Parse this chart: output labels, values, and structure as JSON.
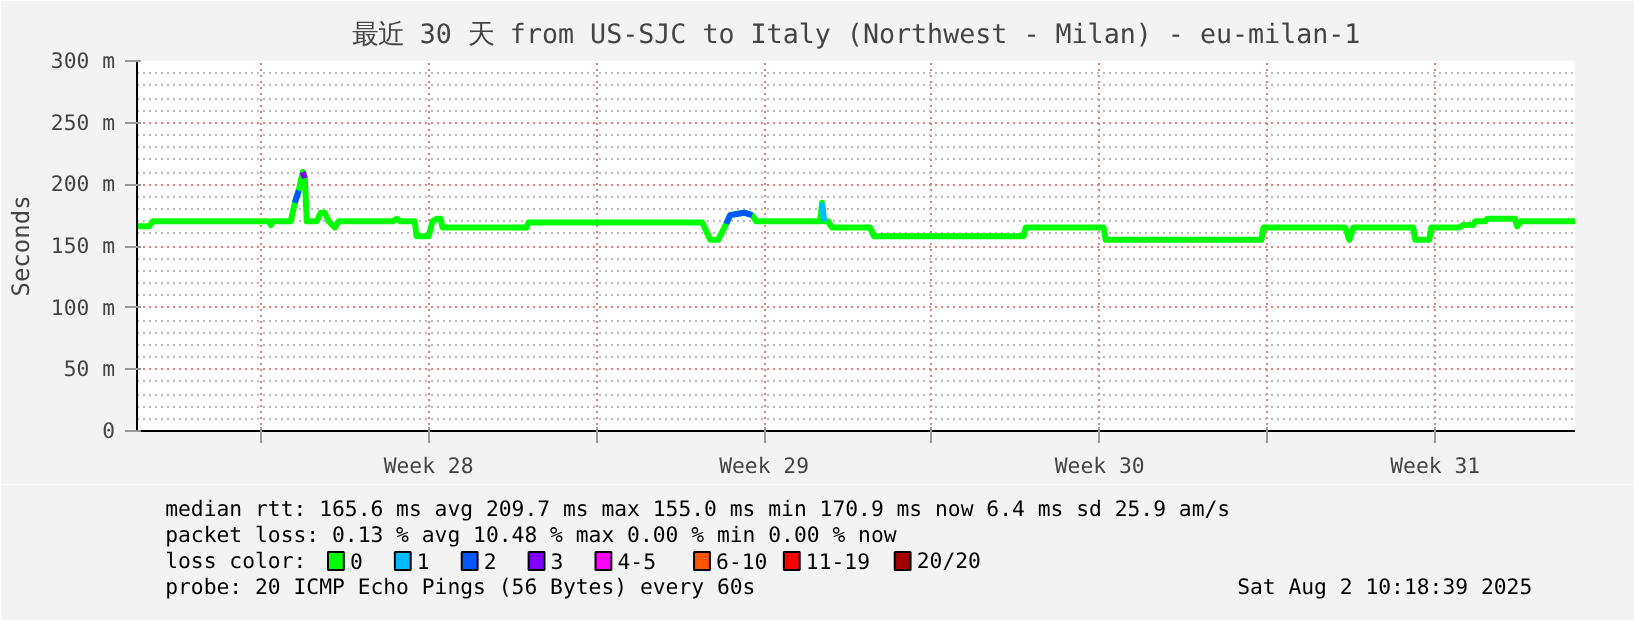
{
  "chart_data": {
    "type": "line",
    "title": "最近 30 天 from US-SJC to Italy (Northwest - Milan) - eu-milan-1",
    "ylabel": "Seconds",
    "x": [
      "2025-07-03T10:00",
      "2025-07-03T16:00",
      "2025-07-03T18:00",
      "2025-07-06T04:00",
      "2025-07-06T05:00",
      "2025-07-06T06:00",
      "2025-07-06T15:00",
      "2025-07-06T17:00",
      "2025-07-06T19:00",
      "2025-07-06T21:00",
      "2025-07-06T22:00",
      "2025-07-06T23:00",
      "2025-07-07T04:00",
      "2025-07-07T06:00",
      "2025-07-07T08:00",
      "2025-07-07T10:00",
      "2025-07-07T13:00",
      "2025-07-07T15:00",
      "2025-07-08T18:00",
      "2025-07-08T20:00",
      "2025-07-08T22:00",
      "2025-07-09T05:00",
      "2025-07-09T06:00",
      "2025-07-09T12:00",
      "2025-07-09T14:00",
      "2025-07-09T16:00",
      "2025-07-09T18:00",
      "2025-07-09T19:00",
      "2025-07-11T13:00",
      "2025-07-11T14:00",
      "2025-07-15T05:00",
      "2025-07-15T09:00",
      "2025-07-15T13:00",
      "2025-07-15T17:00",
      "2025-07-15T19:00",
      "2025-07-16T02:00",
      "2025-07-16T06:00",
      "2025-07-16T08:00",
      "2025-07-17T16:00",
      "2025-07-17T17:00",
      "2025-07-17T18:00",
      "2025-07-17T20:00",
      "2025-07-17T22:00",
      "2025-07-18T17:00",
      "2025-07-18T19:00",
      "2025-07-21T22:00",
      "2025-07-21T23:00",
      "2025-07-23T14:00",
      "2025-07-23T15:00",
      "2025-07-26T21:00",
      "2025-07-26T22:00",
      "2025-07-28T15:00",
      "2025-07-28T17:00",
      "2025-07-28T19:00",
      "2025-07-30T01:00",
      "2025-07-30T02:00",
      "2025-07-30T09:00",
      "2025-07-30T10:00",
      "2025-07-31T00:00",
      "2025-07-31T02:00",
      "2025-07-31T07:00",
      "2025-07-31T08:00",
      "2025-07-31T13:00",
      "2025-07-31T14:00",
      "2025-08-01T04:00",
      "2025-08-01T05:00",
      "2025-08-01T07:00",
      "2025-08-02T10:00"
    ],
    "series": [
      {
        "name": "0",
        "color": "#00ff00",
        "values": [
          166,
          166,
          170,
          170,
          167,
          170,
          170,
          185,
          195,
          210,
          205,
          170,
          170,
          177,
          177,
          170,
          165,
          170,
          170,
          172,
          170,
          170,
          158,
          158,
          170,
          172,
          172,
          165,
          165,
          169,
          169,
          155,
          155,
          168,
          175,
          177,
          175,
          170,
          170,
          185,
          170,
          170,
          165,
          165,
          158,
          158,
          165,
          165,
          155,
          155,
          165,
          165,
          155,
          165,
          165,
          155,
          155,
          165,
          165,
          167,
          167,
          170,
          170,
          172,
          172,
          166,
          170,
          170
        ]
      },
      {
        "name": "1",
        "color": "#00bbff",
        "values": [
          null,
          null,
          null,
          null,
          null,
          null,
          null,
          null,
          null,
          null,
          null,
          null,
          null,
          null,
          null,
          null,
          null,
          null,
          null,
          null,
          null,
          null,
          null,
          null,
          null,
          null,
          null,
          null,
          null,
          null,
          null,
          null,
          null,
          null,
          null,
          null,
          null,
          null,
          null,
          185,
          170,
          null,
          null,
          null,
          null,
          null,
          null,
          null,
          null,
          null,
          null,
          null,
          null,
          null,
          null,
          null,
          null,
          null,
          null,
          null,
          null,
          null,
          null,
          null,
          null,
          null,
          null,
          null
        ]
      },
      {
        "name": "2",
        "color": "#0059ff",
        "values": [
          null,
          null,
          null,
          null,
          null,
          null,
          null,
          185,
          195,
          null,
          null,
          null,
          null,
          null,
          null,
          null,
          null,
          null,
          null,
          null,
          null,
          null,
          null,
          null,
          null,
          null,
          null,
          null,
          null,
          null,
          null,
          null,
          null,
          168,
          175,
          177,
          175,
          null,
          null,
          null,
          null,
          null,
          null,
          null,
          null,
          null,
          null,
          null,
          null,
          null,
          null,
          null,
          null,
          null,
          null,
          null,
          null,
          null,
          null,
          null,
          null,
          null,
          null,
          null,
          null,
          null,
          null,
          null
        ]
      },
      {
        "name": "3",
        "color": "#7e00ff",
        "values": [
          null,
          null,
          null,
          null,
          null,
          null,
          null,
          null,
          null,
          210,
          205,
          null,
          null,
          null,
          null,
          null,
          null,
          null,
          null,
          null,
          null,
          null,
          null,
          null,
          null,
          null,
          null,
          null,
          null,
          null,
          null,
          null,
          null,
          null,
          null,
          null,
          null,
          null,
          null,
          null,
          null,
          null,
          null,
          null,
          null,
          null,
          null,
          null,
          null,
          null,
          null,
          null,
          null,
          null,
          null,
          null,
          null,
          null,
          null,
          null,
          null,
          null,
          null,
          null,
          null,
          null,
          null,
          null
        ]
      },
      {
        "name": "4-5",
        "color": "#ff00ff",
        "values": [
          null,
          null,
          null,
          null,
          null,
          null,
          null,
          null,
          null,
          null,
          null,
          null,
          null,
          null,
          null,
          null,
          null,
          null,
          null,
          null,
          null,
          null,
          null,
          null,
          null,
          null,
          null,
          null,
          null,
          null,
          null,
          null,
          null,
          null,
          null,
          null,
          null,
          null,
          null,
          null,
          null,
          null,
          null,
          null,
          null,
          null,
          null,
          null,
          null,
          null,
          null,
          null,
          null,
          null,
          null,
          null,
          null,
          null,
          null,
          null,
          null,
          null,
          null,
          null,
          null,
          null,
          null,
          null
        ]
      },
      {
        "name": "6-10",
        "color": "#ff5500",
        "values": [
          null,
          null,
          null,
          null,
          null,
          null,
          null,
          null,
          null,
          null,
          null,
          null,
          null,
          null,
          null,
          null,
          null,
          null,
          null,
          null,
          null,
          null,
          null,
          null,
          null,
          null,
          null,
          null,
          null,
          null,
          null,
          null,
          null,
          null,
          null,
          null,
          null,
          null,
          null,
          null,
          null,
          null,
          null,
          null,
          null,
          null,
          null,
          null,
          null,
          null,
          null,
          null,
          null,
          null,
          null,
          null,
          null,
          null,
          null,
          null,
          null,
          null,
          null,
          null,
          null,
          null,
          null,
          null
        ]
      },
      {
        "name": "11-19",
        "color": "#ff0000",
        "values": [
          null,
          null,
          null,
          null,
          null,
          null,
          null,
          null,
          null,
          null,
          null,
          null,
          null,
          null,
          null,
          null,
          null,
          null,
          null,
          null,
          null,
          null,
          null,
          null,
          null,
          null,
          null,
          null,
          null,
          null,
          null,
          null,
          null,
          null,
          null,
          null,
          null,
          null,
          null,
          null,
          null,
          null,
          null,
          null,
          null,
          null,
          null,
          null,
          null,
          null,
          null,
          null,
          null,
          null,
          null,
          null,
          null,
          null,
          null,
          null,
          null,
          null,
          null,
          null,
          null,
          null,
          null,
          null
        ]
      },
      {
        "name": "20/20",
        "color": "#a10000",
        "values": [
          null,
          null,
          null,
          null,
          null,
          null,
          null,
          null,
          null,
          null,
          null,
          null,
          null,
          null,
          null,
          null,
          null,
          null,
          null,
          null,
          null,
          null,
          null,
          null,
          null,
          null,
          null,
          null,
          null,
          null,
          null,
          null,
          null,
          null,
          null,
          null,
          null,
          null,
          null,
          null,
          null,
          null,
          null,
          null,
          null,
          null,
          null,
          null,
          null,
          null,
          null,
          null,
          null,
          null,
          null,
          null,
          null,
          null,
          null,
          null,
          null,
          null,
          null,
          null,
          null,
          null,
          null,
          null
        ]
      }
    ],
    "legend": "bottom",
    "legend_title": "loss color:",
    "xlim": [
      "2025-07-03T10:00",
      "2025-08-02T10:00"
    ],
    "xticks": [
      {
        "value": "2025-07-06",
        "label": null
      },
      {
        "value": "2025-07-09T12:00",
        "label": "Week 28"
      },
      {
        "value": "2025-07-13",
        "label": null
      },
      {
        "value": "2025-07-16T12:00",
        "label": "Week 29"
      },
      {
        "value": "2025-07-20",
        "label": null
      },
      {
        "value": "2025-07-23T12:00",
        "label": "Week 30"
      },
      {
        "value": "2025-07-27",
        "label": null
      },
      {
        "value": "2025-07-30T12:00",
        "label": "Week 31"
      }
    ],
    "ylim": [
      0,
      300
    ],
    "yticks": [
      0,
      {
        "value": 50,
        "label": "50 m"
      },
      {
        "value": 100,
        "label": "100 m"
      },
      {
        "value": 150,
        "label": "150 m"
      },
      {
        "value": 200,
        "label": "200 m"
      },
      {
        "value": 250,
        "label": "250 m"
      },
      {
        "value": 300,
        "label": "300 m"
      }
    ],
    "grid": true,
    "annotations": [
      "median rtt:  165.6 ms avg  209.7 ms max  155.0 ms min  170.9 ms now  6.4 ms sd  25.9   am/s",
      "packet loss: 0.13 % avg  10.48 % max  0.00 % min  0.00 % now",
      "probe:       20 ICMP Echo Pings (56 Bytes) every 60s",
      "Sat Aug  2 10:18:39 2025"
    ]
  }
}
